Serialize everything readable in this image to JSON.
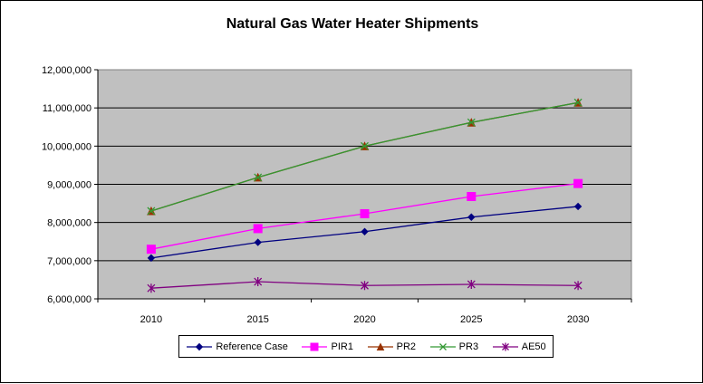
{
  "chart_data": {
    "type": "line",
    "title": "Natural Gas Water Heater Shipments",
    "xlabel": "",
    "ylabel": "",
    "x": [
      "2010",
      "2015",
      "2020",
      "2025",
      "2030"
    ],
    "ylim": [
      6000000,
      12000000
    ],
    "yticks": [
      6000000,
      7000000,
      8000000,
      9000000,
      10000000,
      11000000,
      12000000
    ],
    "ytick_labels": [
      "6,000,000",
      "7,000,000",
      "8,000,000",
      "9,000,000",
      "10,000,000",
      "11,000,000",
      "12,000,000"
    ],
    "grid": true,
    "plot_background": "#c0c0c0",
    "legend_position": "bottom",
    "series": [
      {
        "name": "Reference Case",
        "color": "#000080",
        "marker": "diamond",
        "values": [
          7070000,
          7480000,
          7760000,
          8140000,
          8420000
        ]
      },
      {
        "name": "PIR1",
        "color": "#ff00ff",
        "marker": "square",
        "values": [
          7300000,
          7840000,
          8230000,
          8680000,
          9020000
        ]
      },
      {
        "name": "PR2",
        "color": "#993300",
        "marker": "triangle",
        "values": [
          8300000,
          9180000,
          10000000,
          10620000,
          11140000
        ]
      },
      {
        "name": "PR3",
        "color": "#339933",
        "marker": "x",
        "values": [
          8300000,
          9180000,
          10000000,
          10620000,
          11140000
        ]
      },
      {
        "name": "AE50",
        "color": "#800080",
        "marker": "star",
        "values": [
          6280000,
          6450000,
          6350000,
          6380000,
          6350000
        ]
      }
    ]
  }
}
